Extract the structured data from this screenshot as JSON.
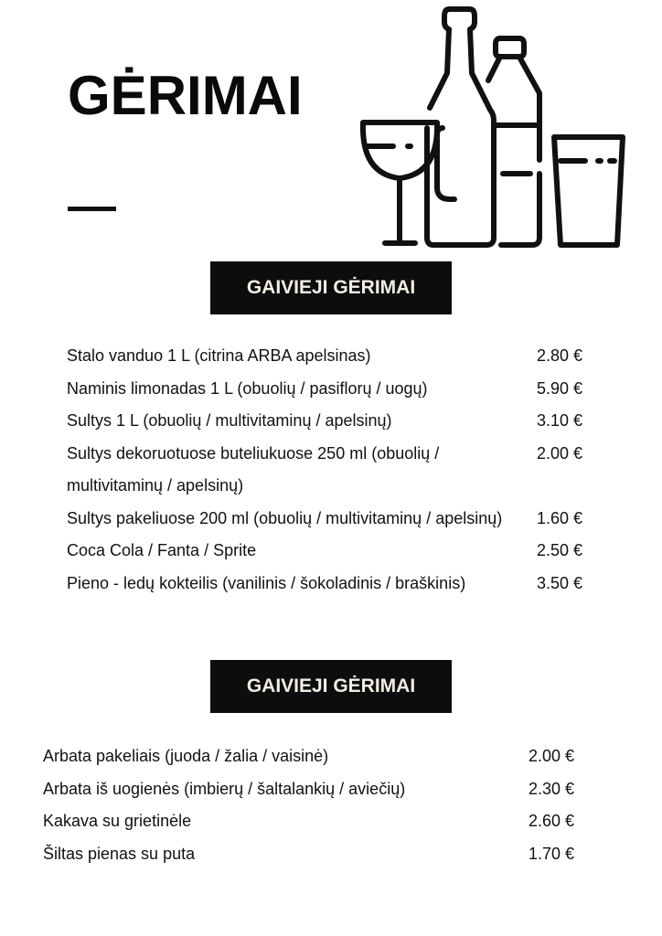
{
  "title": "GĖRIMAI",
  "sections": [
    {
      "heading": "GAIVIEJI GĖRIMAI",
      "items": [
        {
          "name": "Stalo vanduo 1 L (citrina ARBA apelsinas)",
          "price": "2.80 €"
        },
        {
          "name": "Naminis limonadas 1 L (obuolių / pasiflorų / uogų)",
          "price": "5.90 €"
        },
        {
          "name": "Sultys 1 L (obuolių / multivitaminų / apelsinų)",
          "price": "3.10 €"
        },
        {
          "name": "Sultys dekoruotuose buteliukuose 250 ml (obuolių / multivitaminų / apelsinų)",
          "price": "2.00 €"
        },
        {
          "name": "Sultys pakeliuose 200 ml (obuolių / multivitaminų / apelsinų)",
          "price": "1.60 €"
        },
        {
          "name": "Coca Cola / Fanta / Sprite",
          "price": "2.50 €"
        },
        {
          "name": "Pieno - ledų kokteilis (vanilinis / šokoladinis / braškinis)",
          "price": "3.50 €"
        }
      ]
    },
    {
      "heading": "GAIVIEJI GĖRIMAI",
      "items": [
        {
          "name": "Arbata pakeliais (juoda / žalia / vaisinė)",
          "price": "2.00 €"
        },
        {
          "name": "Arbata iš uogienės (imbierų / šaltalankių / aviečių)",
          "price": "2.30 €"
        },
        {
          "name": "Kakava su grietinėle",
          "price": "2.60 €"
        },
        {
          "name": "Šiltas pienas su puta",
          "price": "1.70 €"
        }
      ]
    }
  ],
  "illustration": "drinks-glass-bottles-icon"
}
